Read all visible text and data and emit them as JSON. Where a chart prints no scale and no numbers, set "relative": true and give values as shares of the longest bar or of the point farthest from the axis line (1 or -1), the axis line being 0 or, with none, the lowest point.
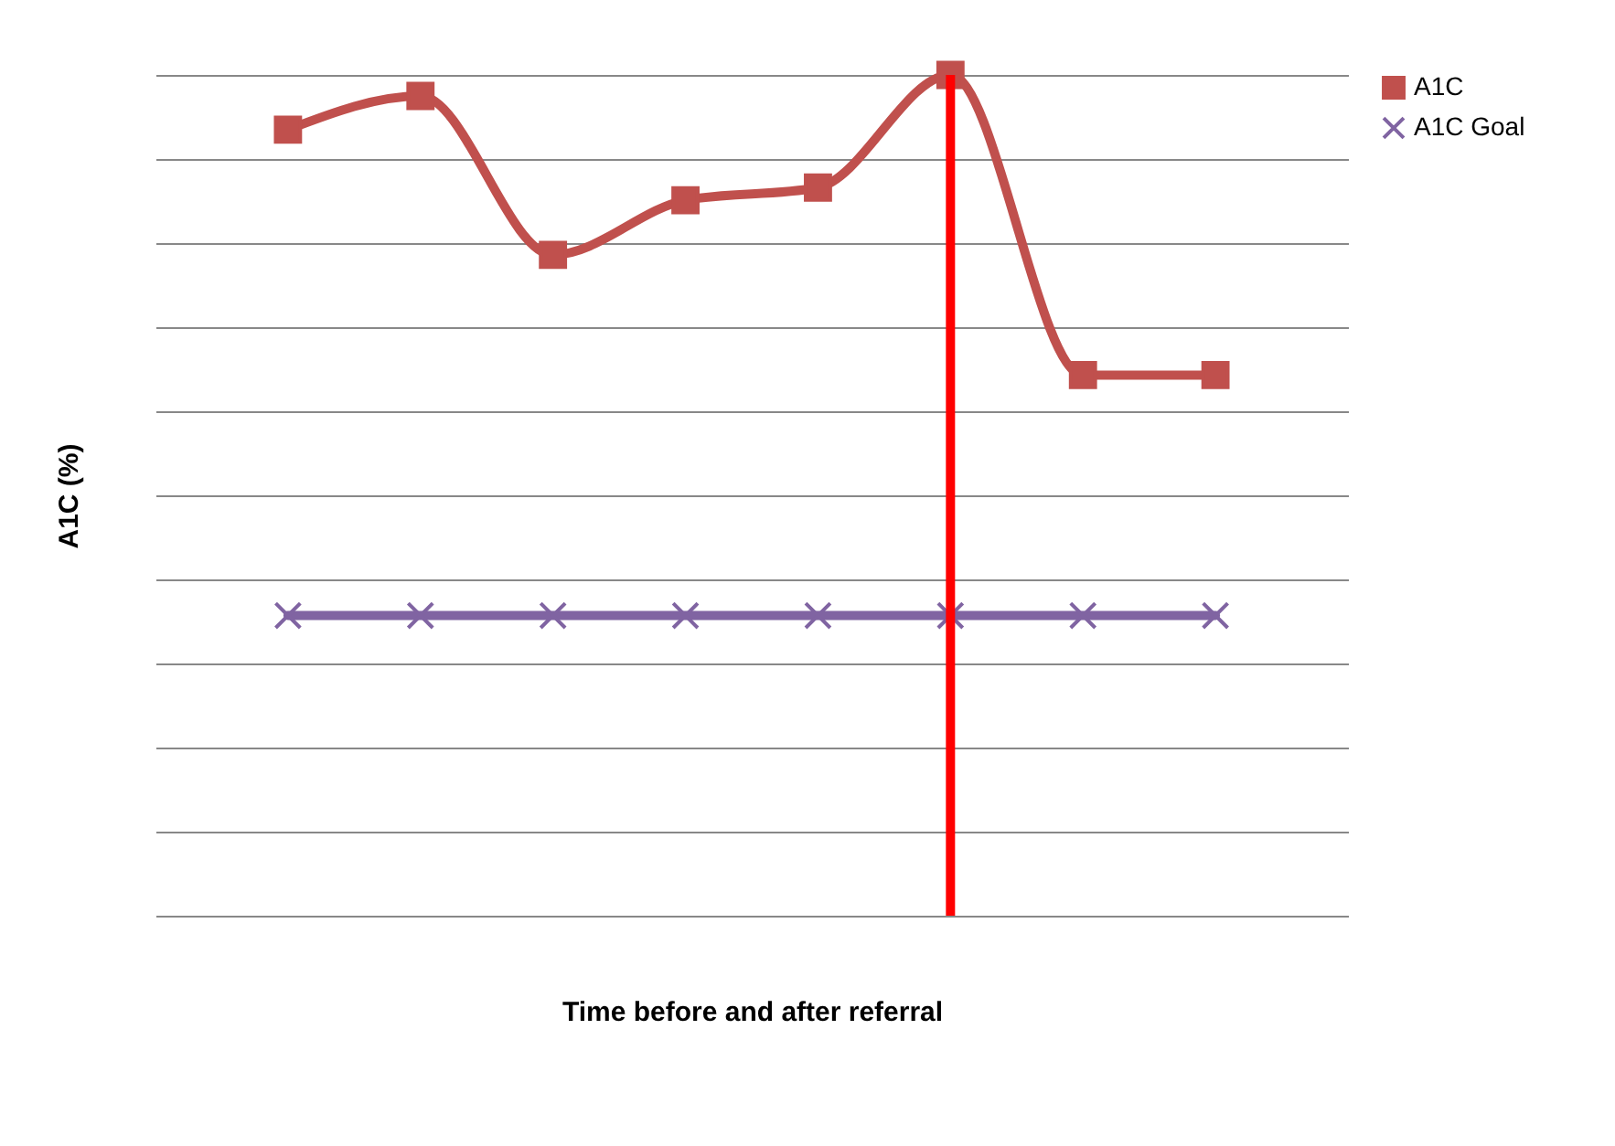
{
  "chart_data": {
    "type": "line",
    "relative": true,
    "xlabel": "Time before and after referral",
    "ylabel": "A1C (%)",
    "categories": [
      null,
      null,
      null,
      null,
      null,
      null,
      null,
      null
    ],
    "series": [
      {
        "name": "A1C",
        "color": "#c0504d",
        "marker": "square",
        "values": [
          0.935,
          0.975,
          0.786,
          0.851,
          0.866,
          1,
          0.643,
          0.643
        ]
      },
      {
        "name": "A1C  Goal",
        "color": "#8064a2",
        "marker": "cross",
        "values": [
          0.357,
          0.357,
          0.357,
          0.357,
          0.357,
          0.357,
          0.357,
          0.357
        ]
      }
    ],
    "grid": "y",
    "legend": "right"
  }
}
